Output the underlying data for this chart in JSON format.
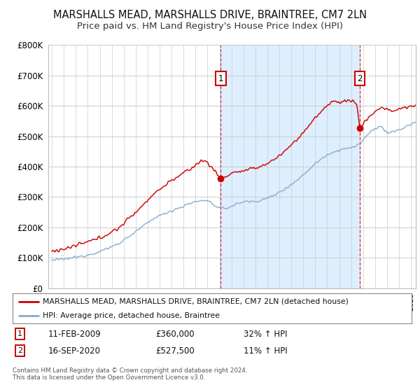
{
  "title": "MARSHALLS MEAD, MARSHALLS DRIVE, BRAINTREE, CM7 2LN",
  "subtitle": "Price paid vs. HM Land Registry's House Price Index (HPI)",
  "title_fontsize": 10.5,
  "subtitle_fontsize": 9.5,
  "ylim": [
    0,
    800000
  ],
  "yticks": [
    0,
    100000,
    200000,
    300000,
    400000,
    500000,
    600000,
    700000,
    800000
  ],
  "ytick_labels": [
    "£0",
    "£100K",
    "£200K",
    "£300K",
    "£400K",
    "£500K",
    "£600K",
    "£700K",
    "£800K"
  ],
  "background_color": "#ffffff",
  "plot_bg_color": "#ffffff",
  "grid_color": "#cccccc",
  "sale1_date_num": 2009.11,
  "sale1_price": 360000,
  "sale2_date_num": 2020.71,
  "sale2_price": 527500,
  "legend_line1": "MARSHALLS MEAD, MARSHALLS DRIVE, BRAINTREE, CM7 2LN (detached house)",
  "legend_line2": "HPI: Average price, detached house, Braintree",
  "footer": "Contains HM Land Registry data © Crown copyright and database right 2024.\nThis data is licensed under the Open Government Licence v3.0.",
  "red_color": "#cc0000",
  "blue_color": "#88aacc",
  "shade_color": "#ddeeff",
  "box_edge_color": "#cc0000",
  "xstart": 1995.0,
  "xend": 2025.3
}
